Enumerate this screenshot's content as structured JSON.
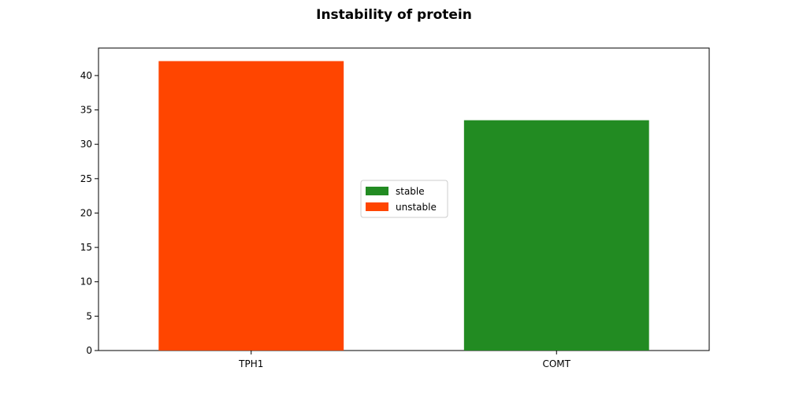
{
  "chart_data": {
    "type": "bar",
    "title": "Instability of protein",
    "xlabel": "",
    "ylabel": "",
    "categories": [
      "TPH1",
      "COMT"
    ],
    "values": [
      42.1,
      33.5
    ],
    "bar_status": [
      "unstable",
      "stable"
    ],
    "ylim": [
      0,
      44
    ],
    "yticks": [
      0,
      5,
      10,
      15,
      20,
      25,
      30,
      35,
      40
    ],
    "grid": false,
    "legend": {
      "placement": "center",
      "entries": [
        {
          "label": "stable",
          "color": "#228b22"
        },
        {
          "label": "unstable",
          "color": "#ff4500"
        }
      ]
    },
    "colors": {
      "stable": "#228b22",
      "unstable": "#ff4500"
    }
  }
}
